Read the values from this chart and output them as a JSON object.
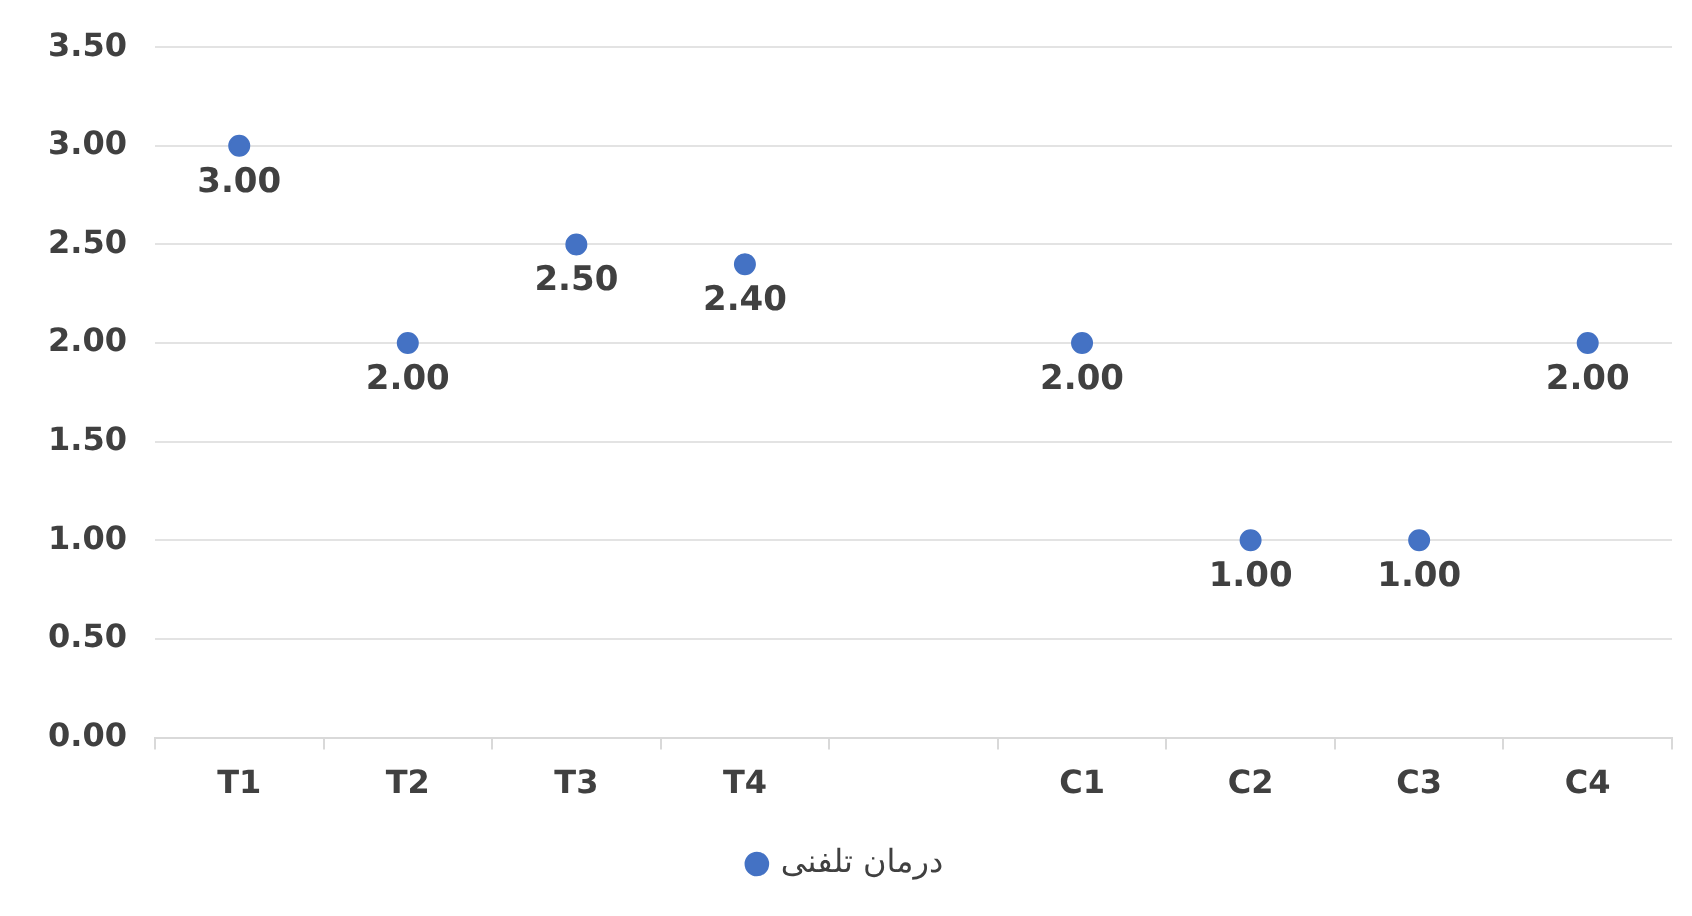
{
  "chart_data": {
    "type": "scatter",
    "categories": [
      "T1",
      "T2",
      "T3",
      "T4",
      null,
      "C1",
      "C2",
      "C3",
      "C4"
    ],
    "series": [
      {
        "name": "درمان تلفنی",
        "color": "#4472c4",
        "values": [
          3,
          2,
          2.5,
          2.4,
          null,
          2,
          1,
          1,
          2
        ],
        "value_labels": [
          "3.00",
          "2.00",
          "2.50",
          "2.40",
          null,
          "2.00",
          "1.00",
          "1.00",
          "2.00"
        ]
      }
    ],
    "ylim": [
      0,
      3.5
    ],
    "yticks": [
      {
        "value": 0,
        "label": "0.00"
      },
      {
        "value": 0.5,
        "label": "0.50"
      },
      {
        "value": 1,
        "label": "1.00"
      },
      {
        "value": 1.5,
        "label": "1.50"
      },
      {
        "value": 2,
        "label": "2.00"
      },
      {
        "value": 2.5,
        "label": "2.50"
      },
      {
        "value": 3,
        "label": "3.00"
      },
      {
        "value": 3.5,
        "label": "3.50"
      }
    ],
    "grid": "y",
    "legend": "bottom",
    "marker": "circle"
  }
}
